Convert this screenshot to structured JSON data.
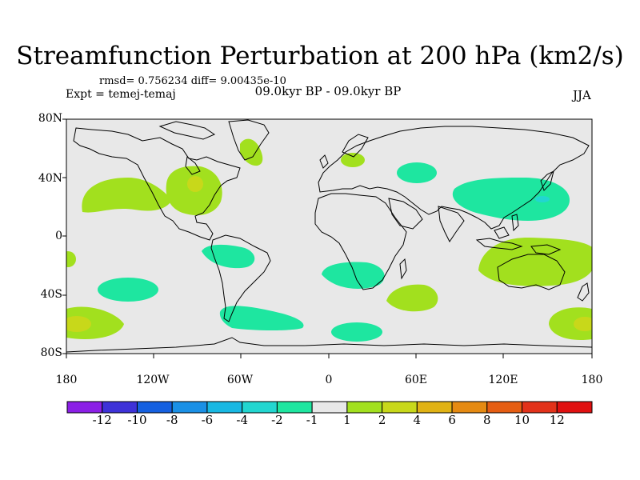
{
  "title": "Streamfunction Perturbation at 200 hPa (km2/s)",
  "stats": "rmsd= 0.756234 diff= 9.00435e-10",
  "experiment": "Expt = temej-temaj",
  "period": "09.0kyr BP - 09.0kyr BP",
  "season": "JJA",
  "lat_labels": [
    "80N",
    "40N",
    "0",
    "40S",
    "80S"
  ],
  "lon_labels": [
    "180",
    "120W",
    "60W",
    "0",
    "60E",
    "120E",
    "180"
  ],
  "colorbar": {
    "colors": [
      "#8b1fe6",
      "#3e32d8",
      "#1560e0",
      "#1a90e6",
      "#18b8e3",
      "#22d6d0",
      "#1ee6a0",
      "#e8e8e8",
      "#a2e01e",
      "#c8d81a",
      "#e0b214",
      "#e58a12",
      "#e55d12",
      "#e2321a",
      "#e01010"
    ],
    "labels": [
      "-12",
      "-10",
      "-8",
      "-6",
      "-4",
      "-2",
      "-1",
      "1",
      "2",
      "4",
      "6",
      "8",
      "10",
      "12"
    ]
  },
  "map_background": "#e8e8e8",
  "icons": [
    "world-coastline-map"
  ]
}
